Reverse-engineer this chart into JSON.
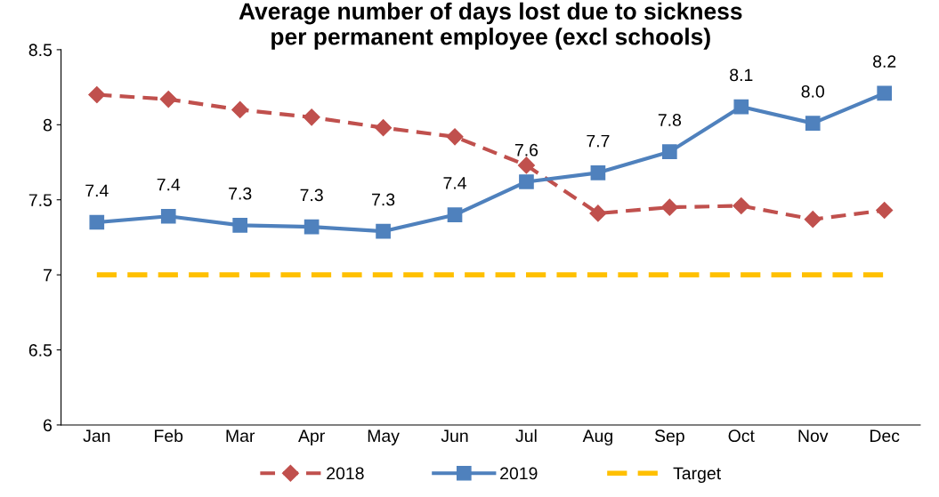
{
  "chart_data": {
    "type": "line",
    "title": "Average number of days lost due to sickness\nper permanent employee (excl schools)",
    "categories": [
      "Jan",
      "Feb",
      "Mar",
      "Apr",
      "May",
      "Jun",
      "Jul",
      "Aug",
      "Sep",
      "Oct",
      "Nov",
      "Dec"
    ],
    "series": [
      {
        "name": "2018",
        "color": "#c0504d",
        "marker": "diamond",
        "line_style": "dashed",
        "values": [
          8.2,
          8.17,
          8.1,
          8.05,
          7.98,
          7.92,
          7.73,
          7.41,
          7.45,
          7.46,
          7.37,
          7.43
        ]
      },
      {
        "name": "2019",
        "color": "#4f81bd",
        "marker": "square",
        "line_style": "solid",
        "values": [
          7.35,
          7.39,
          7.33,
          7.32,
          7.29,
          7.4,
          7.62,
          7.68,
          7.82,
          8.12,
          8.01,
          8.21
        ],
        "value_labels": [
          "7.4",
          "7.4",
          "7.3",
          "7.3",
          "7.3",
          "7.4",
          "7.6",
          "7.7",
          "7.8",
          "8.1",
          "8.0",
          "8.2"
        ]
      },
      {
        "name": "Target",
        "color": "#ffc000",
        "marker": "none",
        "line_style": "dashed",
        "values": [
          7,
          7,
          7,
          7,
          7,
          7,
          7,
          7,
          7,
          7,
          7,
          7
        ]
      }
    ],
    "ylim": [
      6,
      8.5
    ],
    "yticks": [
      6,
      6.5,
      7,
      7.5,
      8,
      8.5
    ],
    "grid": false,
    "legend": "bottom"
  }
}
